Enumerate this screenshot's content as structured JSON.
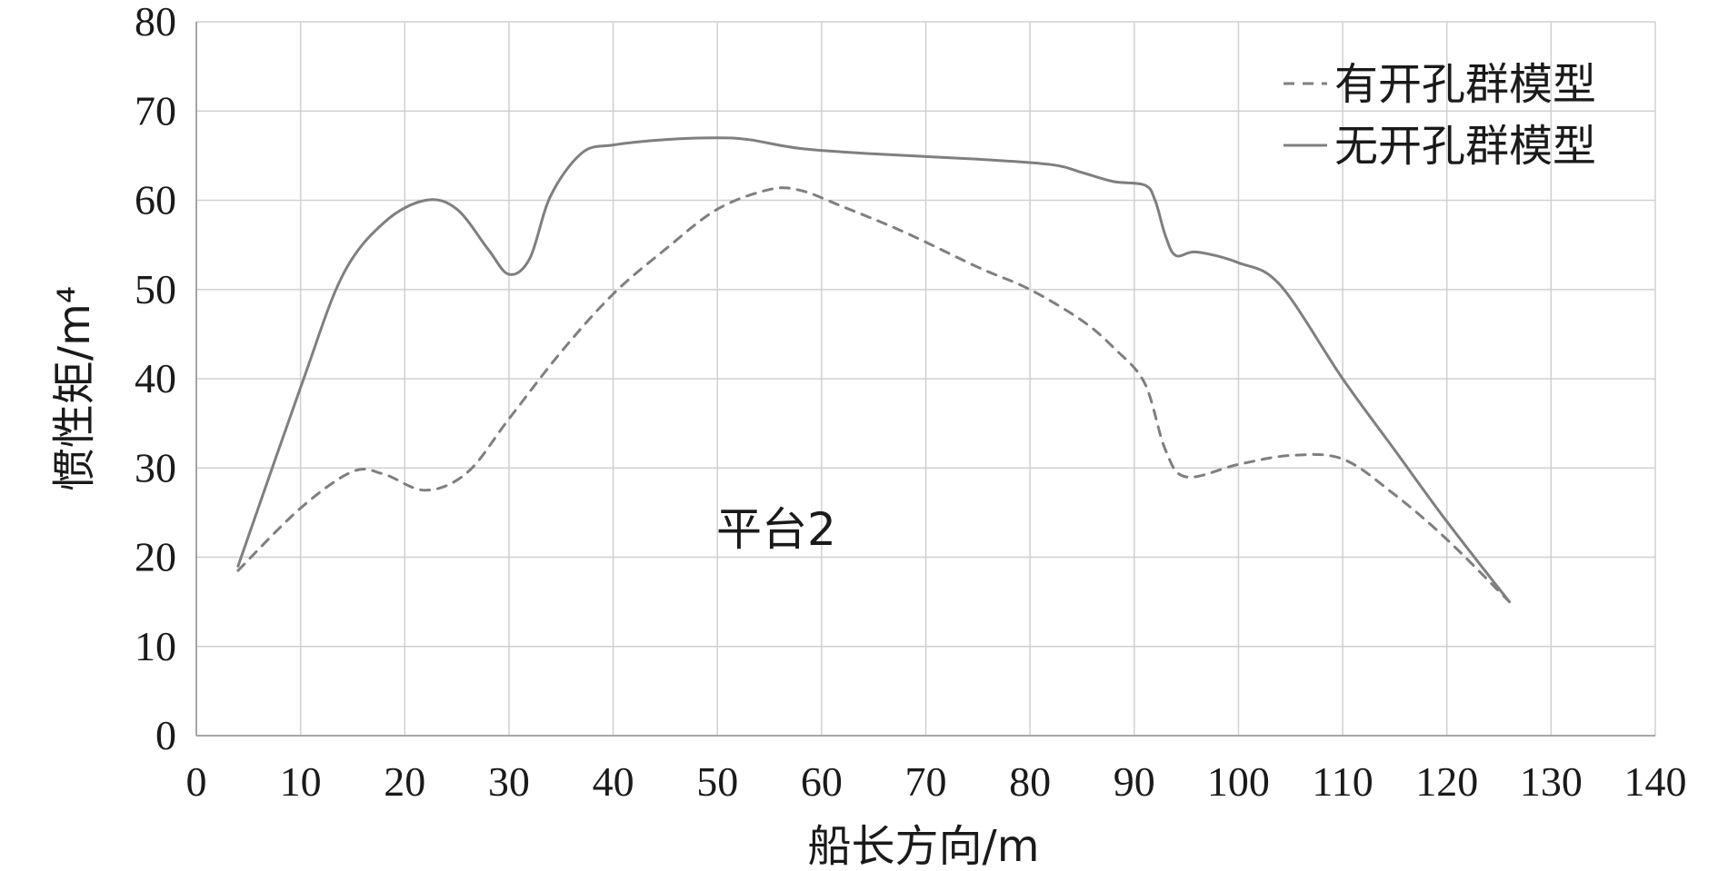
{
  "chart_data": {
    "type": "line",
    "title": "",
    "xlabel": "船长方向/m",
    "ylabel": "惯性矩/m⁴",
    "xlim": [
      0,
      140
    ],
    "ylim": [
      0,
      80
    ],
    "xticks": [
      "0",
      "10",
      "20",
      "30",
      "40",
      "50",
      "60",
      "70",
      "80",
      "90",
      "100",
      "110",
      "120",
      "130",
      "140"
    ],
    "yticks": [
      "0",
      "10",
      "20",
      "30",
      "40",
      "50",
      "60",
      "70",
      "80"
    ],
    "grid": true,
    "legend_position": "top-right",
    "annotation": "平台2",
    "series": [
      {
        "name": "有开孔群模型",
        "style": "dashed",
        "color": "#7f7f7f",
        "x": [
          4,
          10,
          15,
          18,
          22,
          26,
          30,
          35,
          40,
          45,
          50,
          55,
          58,
          62,
          68,
          75,
          80,
          85,
          88,
          91,
          93,
          95,
          100,
          105,
          110,
          115,
          120,
          126
        ],
        "y": [
          18.5,
          25.5,
          29.6,
          29.3,
          27.5,
          29.5,
          35.5,
          43,
          49.5,
          54.5,
          59,
          61.2,
          61.1,
          59.3,
          56.4,
          52.5,
          50,
          46.5,
          43.5,
          39.5,
          32,
          29,
          30.4,
          31.4,
          31,
          27,
          22,
          15
        ]
      },
      {
        "name": "无开孔群模型",
        "style": "solid",
        "color": "#7f7f7f",
        "x": [
          4,
          10,
          14,
          18,
          22,
          25,
          28,
          30,
          32,
          34,
          37,
          40,
          45,
          50,
          53,
          58,
          65,
          75,
          82,
          85,
          88,
          91,
          92,
          93,
          94,
          96,
          100,
          104,
          110,
          115,
          120,
          126
        ],
        "y": [
          19,
          39,
          51.5,
          57.5,
          60,
          59,
          54.5,
          51.7,
          53.5,
          60.5,
          65.3,
          66.2,
          66.8,
          67,
          66.8,
          65.8,
          65.2,
          64.6,
          64,
          63.1,
          62.1,
          61.7,
          60,
          56,
          53.8,
          54.2,
          53,
          50.5,
          40,
          32,
          24,
          15
        ]
      }
    ]
  }
}
